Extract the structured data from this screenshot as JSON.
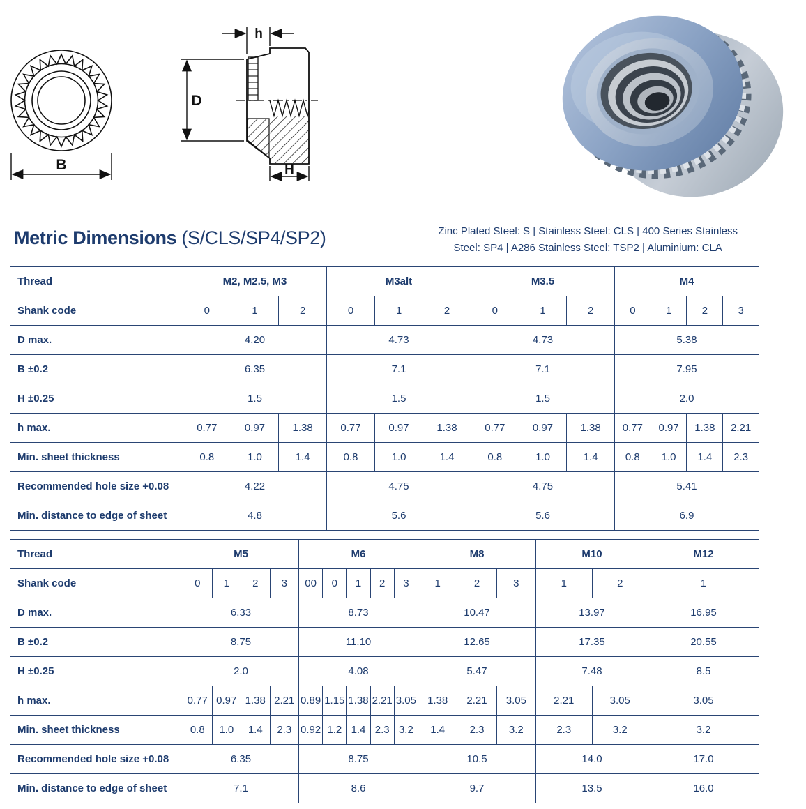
{
  "header": {
    "title": "Metric Dimensions",
    "title_suffix": "(S/CLS/SP4/SP2)",
    "materials_line1": "Zinc Plated Steel: S | Stainless Steel: CLS | 400 Series Stainless",
    "materials_line2": "Steel: SP4 | A286 Stainless Steel: TSP2 | Aluminium: CLA"
  },
  "diagrams": {
    "top_view_dim_label": "B",
    "side_view_shank_dim_label": "h",
    "side_view_diameter_dim_label": "D",
    "side_view_height_dim_label": "H"
  },
  "colors": {
    "navy_text": "#1e3c6e",
    "table_border": "#2a4574",
    "drawing_ink": "#111111",
    "nut_blue": "#7d96ba"
  },
  "row_labels": [
    "Thread",
    "Shank code",
    "D max.",
    "B ±0.2",
    "H ±0.25",
    "h max.",
    "Min. sheet thickness",
    "Recommended hole size +0.08",
    "Min. distance to edge of sheet"
  ],
  "tables": [
    {
      "groups": [
        {
          "thread": "M2, M2.5, M3",
          "shank_codes": [
            "0",
            "1",
            "2"
          ],
          "d_max": "4.20",
          "b_pm": "6.35",
          "h_pm": "1.5",
          "h_max": [
            "0.77",
            "0.97",
            "1.38"
          ],
          "min_sheet": [
            "0.8",
            "1.0",
            "1.4"
          ],
          "hole_size": "4.22",
          "edge_dist": "4.8"
        },
        {
          "thread": "M3alt",
          "shank_codes": [
            "0",
            "1",
            "2"
          ],
          "d_max": "4.73",
          "b_pm": "7.1",
          "h_pm": "1.5",
          "h_max": [
            "0.77",
            "0.97",
            "1.38"
          ],
          "min_sheet": [
            "0.8",
            "1.0",
            "1.4"
          ],
          "hole_size": "4.75",
          "edge_dist": "5.6"
        },
        {
          "thread": "M3.5",
          "shank_codes": [
            "0",
            "1",
            "2"
          ],
          "d_max": "4.73",
          "b_pm": "7.1",
          "h_pm": "1.5",
          "h_max": [
            "0.77",
            "0.97",
            "1.38"
          ],
          "min_sheet": [
            "0.8",
            "1.0",
            "1.4"
          ],
          "hole_size": "4.75",
          "edge_dist": "5.6"
        },
        {
          "thread": "M4",
          "shank_codes": [
            "0",
            "1",
            "2",
            "3"
          ],
          "d_max": "5.38",
          "b_pm": "7.95",
          "h_pm": "2.0",
          "h_max": [
            "0.77",
            "0.97",
            "1.38",
            "2.21"
          ],
          "min_sheet": [
            "0.8",
            "1.0",
            "1.4",
            "2.3"
          ],
          "hole_size": "5.41",
          "edge_dist": "6.9"
        }
      ]
    },
    {
      "groups": [
        {
          "thread": "M5",
          "shank_codes": [
            "0",
            "1",
            "2",
            "3"
          ],
          "d_max": "6.33",
          "b_pm": "8.75",
          "h_pm": "2.0",
          "h_max": [
            "0.77",
            "0.97",
            "1.38",
            "2.21"
          ],
          "min_sheet": [
            "0.8",
            "1.0",
            "1.4",
            "2.3"
          ],
          "hole_size": "6.35",
          "edge_dist": "7.1"
        },
        {
          "thread": "M6",
          "shank_codes": [
            "00",
            "0",
            "1",
            "2",
            "3"
          ],
          "d_max": "8.73",
          "b_pm": "11.10",
          "h_pm": "4.08",
          "h_max": [
            "0.89",
            "1.15",
            "1.38",
            "2.21",
            "3.05"
          ],
          "min_sheet": [
            "0.92",
            "1.2",
            "1.4",
            "2.3",
            "3.2"
          ],
          "hole_size": "8.75",
          "edge_dist": "8.6"
        },
        {
          "thread": "M8",
          "shank_codes": [
            "1",
            "2",
            "3"
          ],
          "d_max": "10.47",
          "b_pm": "12.65",
          "h_pm": "5.47",
          "h_max": [
            "1.38",
            "2.21",
            "3.05"
          ],
          "min_sheet": [
            "1.4",
            "2.3",
            "3.2"
          ],
          "hole_size": "10.5",
          "edge_dist": "9.7"
        },
        {
          "thread": "M10",
          "shank_codes": [
            "1",
            "2"
          ],
          "d_max": "13.97",
          "b_pm": "17.35",
          "h_pm": "7.48",
          "h_max": [
            "2.21",
            "3.05"
          ],
          "min_sheet": [
            "2.3",
            "3.2"
          ],
          "hole_size": "14.0",
          "edge_dist": "13.5"
        },
        {
          "thread": "M12",
          "shank_codes": [
            "1"
          ],
          "d_max": "16.95",
          "b_pm": "20.55",
          "h_pm": "8.5",
          "h_max": [
            "3.05"
          ],
          "min_sheet": [
            "3.2"
          ],
          "hole_size": "17.0",
          "edge_dist": "16.0"
        }
      ]
    }
  ]
}
